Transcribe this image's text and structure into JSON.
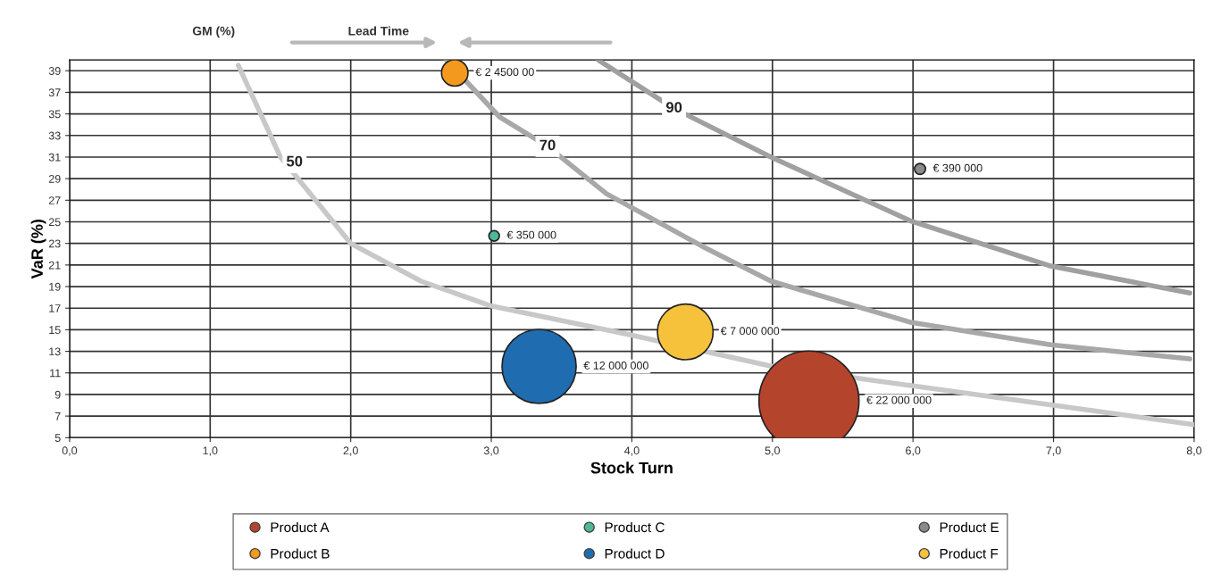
{
  "chart_data": {
    "type": "bubble",
    "xlabel": "Stock Turn",
    "ylabel": "VaR (%)",
    "xlim": [
      0,
      8
    ],
    "ylim": [
      5,
      40
    ],
    "xticks": [
      {
        "value": 0,
        "label": "0,0"
      },
      {
        "value": 1,
        "label": "1,0"
      },
      {
        "value": 2,
        "label": "2,0"
      },
      {
        "value": 3,
        "label": "3,0"
      },
      {
        "value": 4,
        "label": "4,0"
      },
      {
        "value": 5,
        "label": "5,0"
      },
      {
        "value": 6,
        "label": "6,0"
      },
      {
        "value": 7,
        "label": "7,0"
      },
      {
        "value": 8,
        "label": "8,0"
      }
    ],
    "yticks": [
      5,
      7,
      9,
      11,
      13,
      15,
      17,
      19,
      21,
      23,
      25,
      27,
      29,
      31,
      33,
      35,
      37,
      39
    ],
    "grid": true,
    "legend": "bottom",
    "series": [
      {
        "name": "Product A",
        "color": "#b5442c",
        "x": [
          5.26
        ],
        "values": [
          8.4
        ],
        "sizes": [
          1
        ]
      },
      {
        "name": "Product B",
        "color": "#f39a1e",
        "x": [
          2.74
        ],
        "values": [
          38.8
        ],
        "sizes": [
          0.07
        ]
      },
      {
        "name": "Product C",
        "color": "#4db89a",
        "x": [
          3.02
        ],
        "values": [
          23.7
        ],
        "sizes": [
          0.011
        ]
      },
      {
        "name": "Product D",
        "color": "#1f6db0",
        "x": [
          3.34
        ],
        "values": [
          11.6
        ],
        "sizes": [
          0.55
        ]
      },
      {
        "name": "Product E",
        "color": "#8a8a8a",
        "x": [
          6.05
        ],
        "values": [
          29.9
        ],
        "sizes": [
          0.012
        ]
      },
      {
        "name": "Product F",
        "color": "#f7c23b",
        "x": [
          4.38
        ],
        "values": [
          14.8
        ],
        "sizes": [
          0.31
        ]
      },
      {
        "type": "line",
        "color": "#c8c8c8",
        "x": [
          1.2,
          1.5,
          2.0,
          2.5,
          3.0,
          4.0,
          5.0,
          6.0,
          7.0,
          8.0
        ],
        "values": [
          39.5,
          31,
          23,
          19.5,
          17.2,
          14.5,
          11.6,
          9.8,
          8.0,
          6.2
        ]
      },
      {
        "type": "line",
        "color": "#a8a8a8",
        "x": [
          2.68,
          3.06,
          3.4,
          3.82,
          4.52,
          4.99,
          5.98,
          6.98,
          7.97
        ],
        "values": [
          40,
          34.7,
          32,
          27.6,
          22.6,
          19.5,
          15.7,
          13.6,
          12.3
        ]
      },
      {
        "type": "line",
        "color": "#a0a0a0",
        "x": [
          3.76,
          4.3,
          4.99,
          5.98,
          6.98,
          7.97
        ],
        "values": [
          40,
          35.5,
          31.0,
          25.1,
          20.9,
          18.4
        ]
      }
    ],
    "annotations": [
      {
        "text": "50",
        "x": 1.6,
        "y": 30.5
      },
      {
        "text": "70",
        "x": 3.4,
        "y": 32
      },
      {
        "text": "90",
        "x": 4.3,
        "y": 35.5
      },
      "€ 22 000 000",
      "€ 2 4500 00",
      "€ 350 000",
      "€ 12 000 000",
      "€ 390 000",
      "€ 7 000 000",
      "GM (%)",
      "Lead Time"
    ]
  }
}
